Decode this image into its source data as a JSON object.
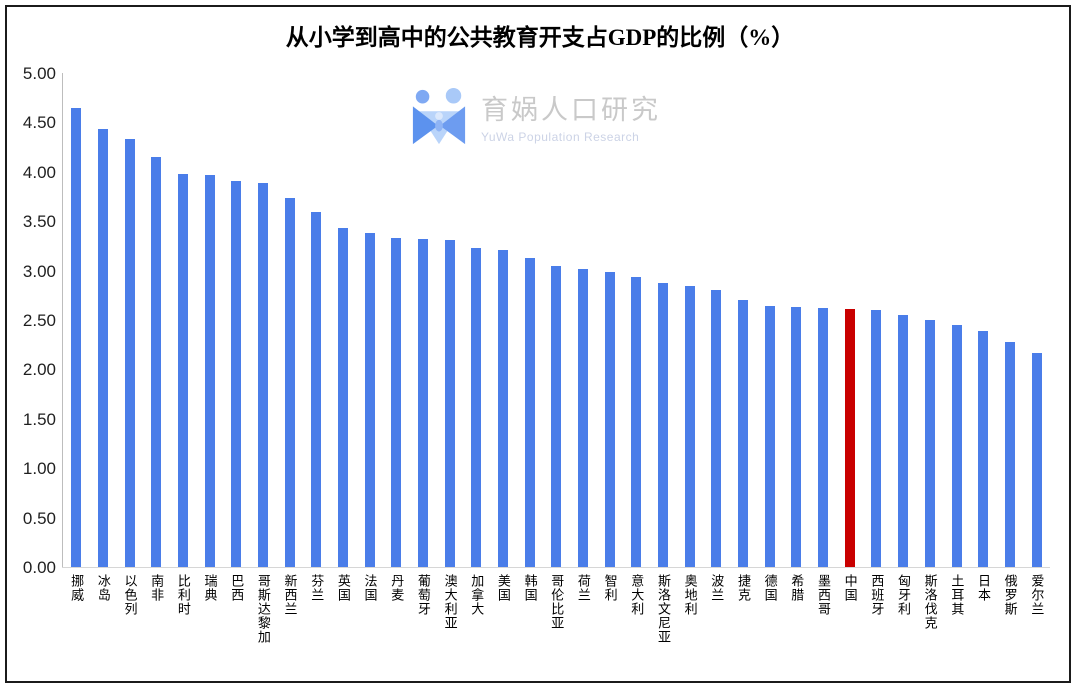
{
  "chart_data": {
    "type": "bar",
    "title": "从小学到高中的公共教育开支占GDP的比例（%）",
    "xlabel": "",
    "ylabel": "",
    "ylim": [
      0,
      5
    ],
    "ytick_labels": [
      "5.00",
      "4.50",
      "4.00",
      "3.50",
      "3.00",
      "2.50",
      "2.00",
      "1.50",
      "1.00",
      "0.50",
      "0.00"
    ],
    "grid": false,
    "legend": "none",
    "bar_color": "#4a7de9",
    "highlight_color": "#c90000",
    "highlight_category": "中国",
    "categories": [
      "挪威",
      "冰岛",
      "以色列",
      "南非",
      "比利时",
      "瑞典",
      "巴西",
      "哥斯达黎加",
      "新西兰",
      "芬兰",
      "英国",
      "法国",
      "丹麦",
      "葡萄牙",
      "澳大利亚",
      "加拿大",
      "美国",
      "韩国",
      "哥伦比亚",
      "荷兰",
      "智利",
      "意大利",
      "斯洛文尼亚",
      "奥地利",
      "波兰",
      "捷克",
      "德国",
      "希腊",
      "墨西哥",
      "中国",
      "西班牙",
      "匈牙利",
      "斯洛伐克",
      "土耳其",
      "日本",
      "俄罗斯",
      "爱尔兰"
    ],
    "values": [
      4.65,
      4.43,
      4.33,
      4.15,
      3.98,
      3.97,
      3.91,
      3.89,
      3.74,
      3.59,
      3.43,
      3.38,
      3.33,
      3.32,
      3.31,
      3.23,
      3.21,
      3.13,
      3.05,
      3.02,
      2.99,
      2.94,
      2.87,
      2.84,
      2.8,
      2.7,
      2.64,
      2.63,
      2.62,
      2.61,
      2.6,
      2.55,
      2.5,
      2.45,
      2.39,
      2.28,
      2.17
    ]
  },
  "watermark": {
    "name": "育娲人口研究",
    "subtitle": "YuWa Population Research",
    "logo_icon": "yuwa-logo"
  }
}
